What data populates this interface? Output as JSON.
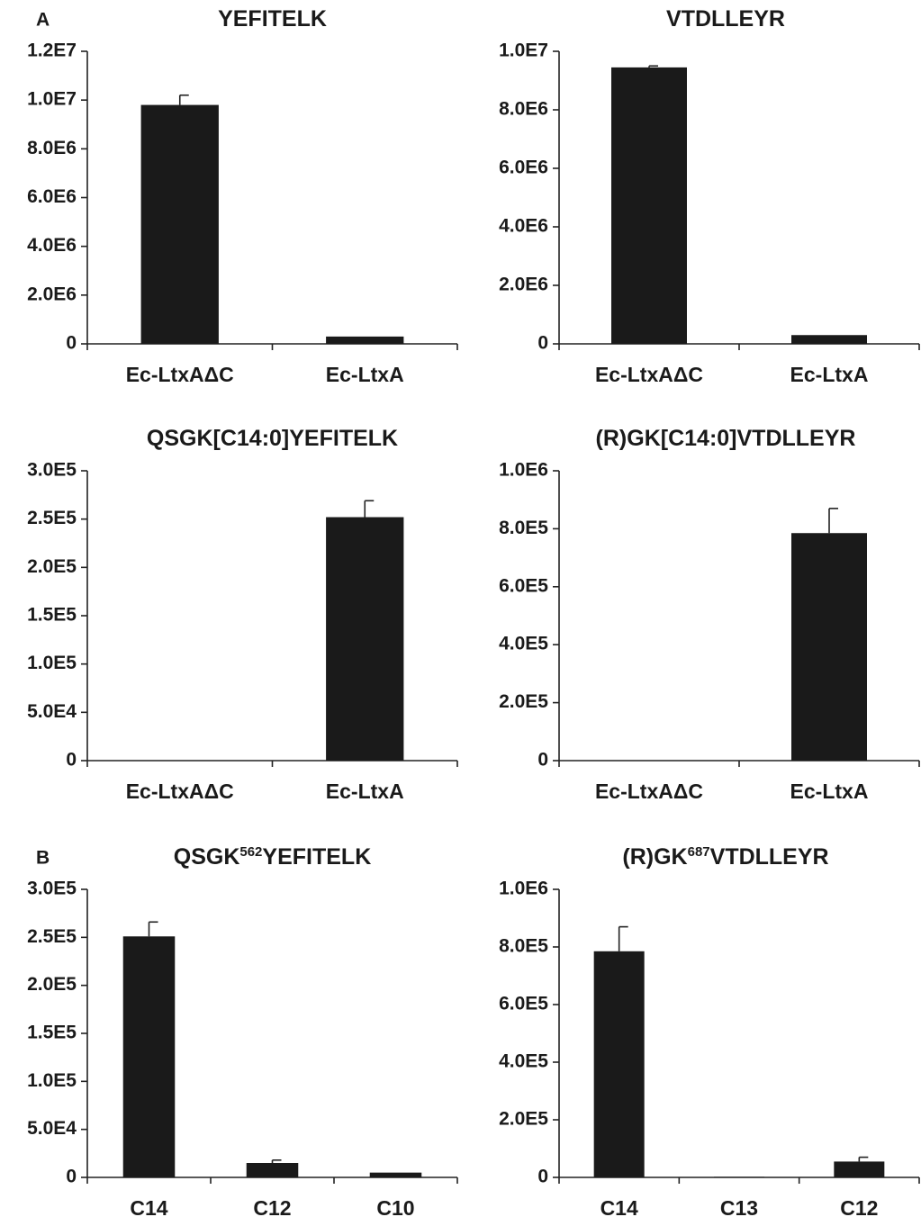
{
  "chart_data": [
    {
      "type": "bar",
      "panel_label": "A",
      "title": [
        {
          "text": "YEFITELK"
        }
      ],
      "categories": [
        "Ec-LtxAΔC",
        "Ec-LtxA"
      ],
      "values": [
        9800000,
        300000
      ],
      "errors": [
        400000,
        null
      ],
      "color": "#1a1a1a",
      "ylim": [
        0,
        12000000
      ],
      "yticks": [
        0,
        {
          "value": 2000000,
          "label": "2.0E6"
        },
        {
          "value": 4000000,
          "label": "4.0E6"
        },
        {
          "value": 6000000,
          "label": "6.0E6"
        },
        {
          "value": 8000000,
          "label": "8.0E6"
        },
        {
          "value": 10000000,
          "label": "1.0E7"
        },
        {
          "value": 12000000,
          "label": "1.2E7"
        }
      ]
    },
    {
      "type": "bar",
      "title": [
        {
          "text": "VTDLLEYR"
        }
      ],
      "categories": [
        "Ec-LtxAΔC",
        "Ec-LtxA"
      ],
      "values": [
        9450000,
        300000
      ],
      "errors": [
        50000,
        null
      ],
      "color": "#1a1a1a",
      "ylim": [
        0,
        10000000
      ],
      "yticks": [
        0,
        {
          "value": 2000000,
          "label": "2.0E6"
        },
        {
          "value": 4000000,
          "label": "4.0E6"
        },
        {
          "value": 6000000,
          "label": "6.0E6"
        },
        {
          "value": 8000000,
          "label": "8.0E6"
        },
        {
          "value": 10000000,
          "label": "1.0E7"
        }
      ]
    },
    {
      "type": "bar",
      "title": [
        {
          "text": "QSGK[C14:0]YEFITELK"
        }
      ],
      "categories": [
        "Ec-LtxAΔC",
        "Ec-LtxA"
      ],
      "values": [
        0,
        252000
      ],
      "errors": [
        null,
        17000
      ],
      "color": "#1a1a1a",
      "ylim": [
        0,
        300000
      ],
      "yticks": [
        0,
        {
          "value": 50000,
          "label": "5.0E4"
        },
        {
          "value": 100000,
          "label": "1.0E5"
        },
        {
          "value": 150000,
          "label": "1.5E5"
        },
        {
          "value": 200000,
          "label": "2.0E5"
        },
        {
          "value": 250000,
          "label": "2.5E5"
        },
        {
          "value": 300000,
          "label": "3.0E5"
        }
      ]
    },
    {
      "type": "bar",
      "title": [
        {
          "text": "(R)GK[C14:0]VTDLLEYR"
        }
      ],
      "categories": [
        "Ec-LtxAΔC",
        "Ec-LtxA"
      ],
      "values": [
        0,
        785000
      ],
      "errors": [
        null,
        85000
      ],
      "color": "#1a1a1a",
      "ylim": [
        0,
        1000000
      ],
      "yticks": [
        0,
        {
          "value": 200000,
          "label": "2.0E5"
        },
        {
          "value": 400000,
          "label": "4.0E5"
        },
        {
          "value": 600000,
          "label": "6.0E5"
        },
        {
          "value": 800000,
          "label": "8.0E5"
        },
        {
          "value": 1000000,
          "label": "1.0E6"
        }
      ]
    },
    {
      "type": "bar",
      "panel_label": "B",
      "title": [
        {
          "text": "QSGK"
        },
        {
          "text": "562",
          "sup": true
        },
        {
          "text": "YEFITELK"
        }
      ],
      "categories": [
        "C14",
        "C12",
        "C10"
      ],
      "values": [
        251000,
        15000,
        5000
      ],
      "errors": [
        15000,
        3000,
        null
      ],
      "color": "#1a1a1a",
      "ylim": [
        0,
        300000
      ],
      "yticks": [
        0,
        {
          "value": 50000,
          "label": "5.0E4"
        },
        {
          "value": 100000,
          "label": "1.0E5"
        },
        {
          "value": 150000,
          "label": "1.5E5"
        },
        {
          "value": 200000,
          "label": "2.0E5"
        },
        {
          "value": 250000,
          "label": "2.5E5"
        },
        {
          "value": 300000,
          "label": "3.0E5"
        }
      ]
    },
    {
      "type": "bar",
      "title": [
        {
          "text": "(R)GK"
        },
        {
          "text": "687",
          "sup": true
        },
        {
          "text": "VTDLLEYR"
        }
      ],
      "categories": [
        "C14",
        "C13",
        "C12"
      ],
      "values": [
        785000,
        2000,
        55000
      ],
      "errors": [
        85000,
        null,
        15000
      ],
      "color": "#1a1a1a",
      "ylim": [
        0,
        1000000
      ],
      "yticks": [
        0,
        {
          "value": 200000,
          "label": "2.0E5"
        },
        {
          "value": 400000,
          "label": "4.0E5"
        },
        {
          "value": 600000,
          "label": "6.0E5"
        },
        {
          "value": 800000,
          "label": "8.0E5"
        },
        {
          "value": 1000000,
          "label": "1.0E6"
        }
      ]
    }
  ]
}
